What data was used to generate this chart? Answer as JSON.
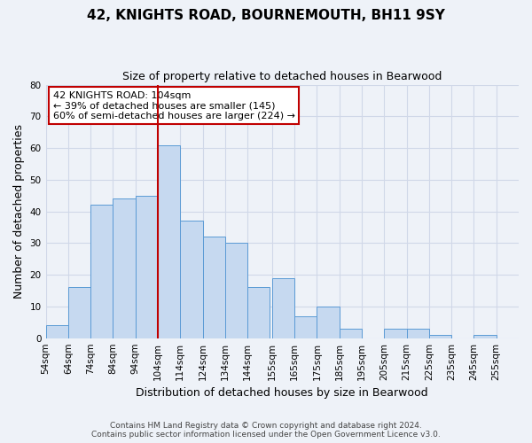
{
  "title": "42, KNIGHTS ROAD, BOURNEMOUTH, BH11 9SY",
  "subtitle": "Size of property relative to detached houses in Bearwood",
  "xlabel": "Distribution of detached houses by size in Bearwood",
  "ylabel": "Number of detached properties",
  "footer_line1": "Contains HM Land Registry data © Crown copyright and database right 2024.",
  "footer_line2": "Contains public sector information licensed under the Open Government Licence v3.0.",
  "bin_left_edges": [
    54,
    64,
    74,
    84,
    94,
    104,
    114,
    124,
    134,
    144,
    155,
    165,
    175,
    185,
    195,
    205,
    215,
    225,
    235,
    245,
    255
  ],
  "bin_counts": [
    4,
    16,
    42,
    44,
    45,
    61,
    37,
    32,
    30,
    16,
    19,
    7,
    10,
    3,
    0,
    3,
    3,
    1,
    0,
    1,
    0
  ],
  "bin_width": 10,
  "bar_color": "#c6d9f0",
  "bar_edge_color": "#5b9bd5",
  "marker_x": 104,
  "marker_color": "#c00000",
  "annotation_title": "42 KNIGHTS ROAD: 104sqm",
  "annotation_line2": "← 39% of detached houses are smaller (145)",
  "annotation_line3": "60% of semi-detached houses are larger (224) →",
  "annotation_box_edge_color": "#c00000",
  "ylim": [
    0,
    80
  ],
  "yticks": [
    0,
    10,
    20,
    30,
    40,
    50,
    60,
    70,
    80
  ],
  "xlim_left": 54,
  "xlim_right": 265,
  "xtick_positions": [
    54,
    64,
    74,
    84,
    94,
    104,
    114,
    124,
    134,
    144,
    155,
    165,
    175,
    185,
    195,
    205,
    215,
    225,
    235,
    245,
    255
  ],
  "xtick_labels": [
    "54sqm",
    "64sqm",
    "74sqm",
    "84sqm",
    "94sqm",
    "104sqm",
    "114sqm",
    "124sqm",
    "134sqm",
    "144sqm",
    "155sqm",
    "165sqm",
    "175sqm",
    "185sqm",
    "195sqm",
    "205sqm",
    "215sqm",
    "225sqm",
    "235sqm",
    "245sqm",
    "255sqm"
  ],
  "bg_color": "#eef2f8",
  "grid_color": "#d0d8e8",
  "title_fontsize": 11,
  "subtitle_fontsize": 9,
  "axis_label_fontsize": 9,
  "tick_fontsize": 7.5,
  "footer_fontsize": 6.5
}
